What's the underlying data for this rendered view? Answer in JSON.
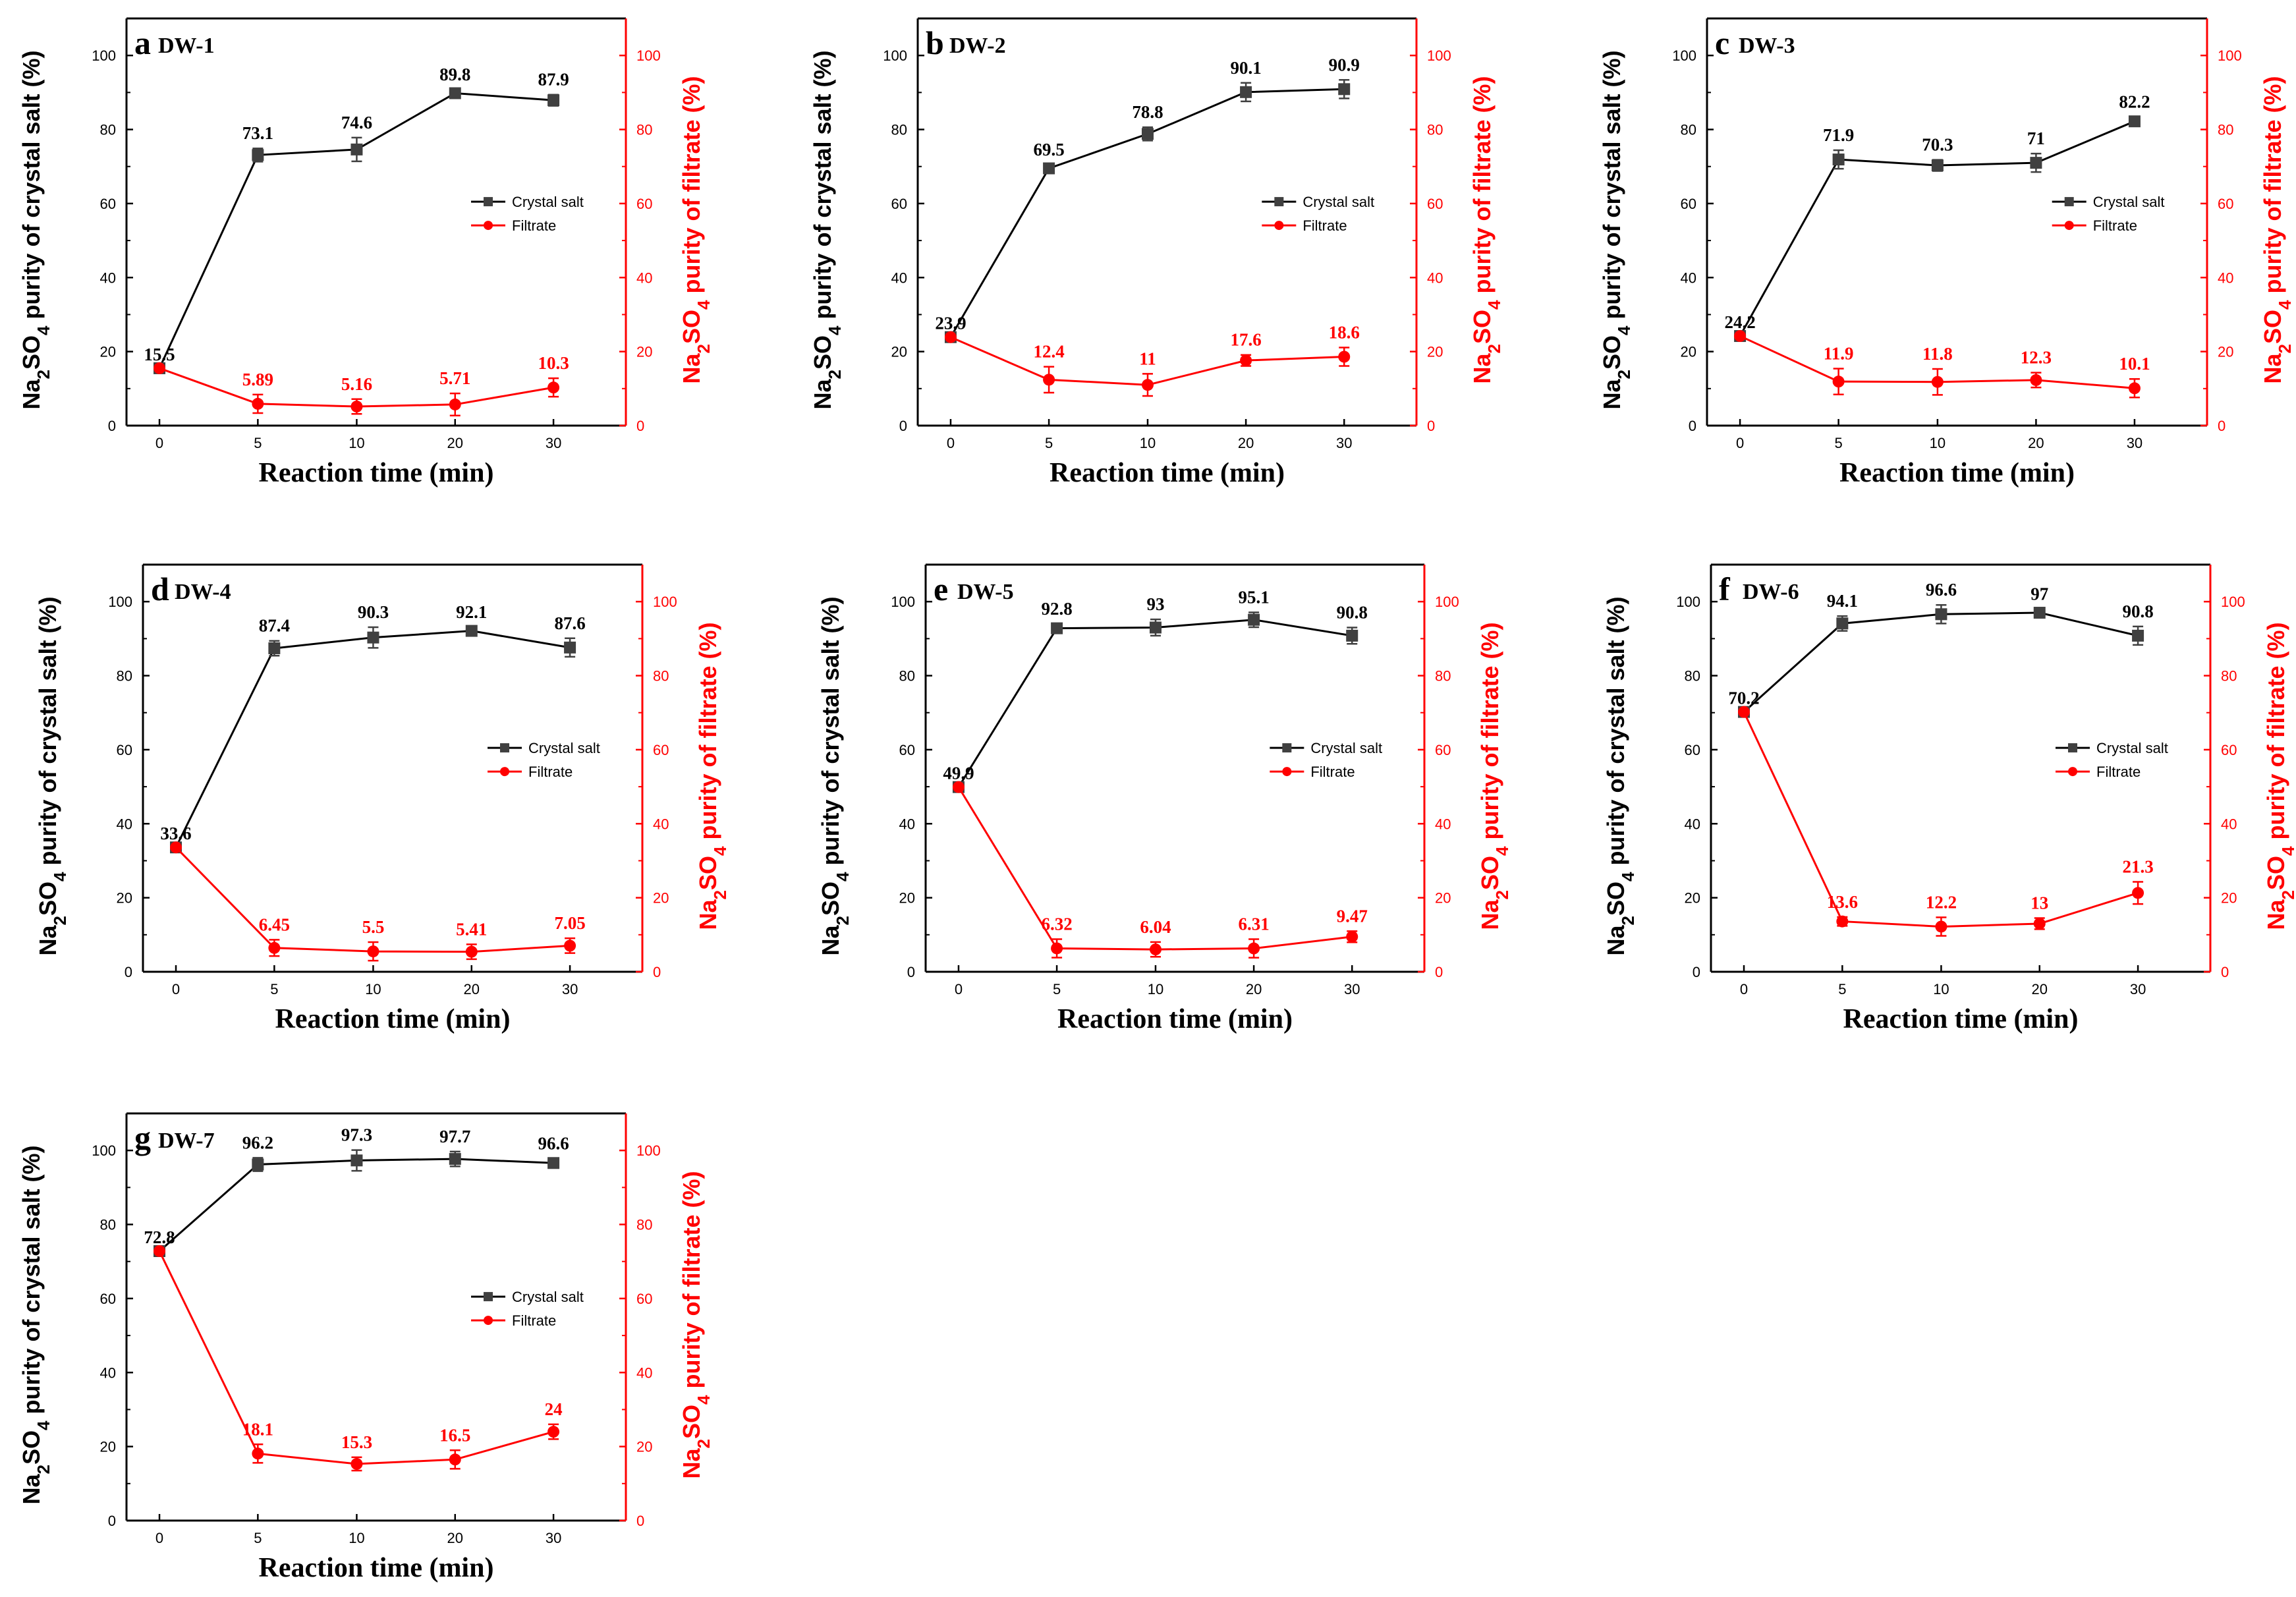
{
  "colors": {
    "crystal": "#000000",
    "crystal_marker": "#404040",
    "filtrate": "#ff0000",
    "axis": "#000000"
  },
  "chart_data": [
    {
      "type": "line",
      "panel": "a",
      "title": "DW-1",
      "x": [
        0,
        5,
        10,
        20,
        30
      ],
      "x_tick_labels": [
        "0",
        "5",
        "10",
        "20",
        "30"
      ],
      "xlabel": "Reaction time (min)",
      "ylabel_left": {
        "prefix": "Na",
        "sub1": "2",
        "mid": "SO",
        "sub2": "4",
        "suffix": " purity of crystal salt (%)"
      },
      "ylabel_right": {
        "prefix": "Na",
        "sub1": "2",
        "mid": "SO",
        "sub2": "4",
        "suffix": " purity of filtrate (%)"
      },
      "ylim": [
        0,
        110
      ],
      "y_ticks": [
        0,
        20,
        40,
        60,
        80,
        100
      ],
      "legend_position": "center-right",
      "series": [
        {
          "name": "Crystal salt",
          "values": [
            15.5,
            73.1,
            74.6,
            89.8,
            87.9
          ],
          "errors": [
            0.8,
            1.8,
            3.2,
            1.0,
            1.5
          ],
          "labels": [
            "15.5",
            "73.1",
            "74.6",
            "89.8",
            "87.9"
          ]
        },
        {
          "name": "Filtrate",
          "values": [
            15.5,
            5.89,
            5.16,
            5.71,
            10.3
          ],
          "errors": [
            0.5,
            2.5,
            2.0,
            3.0,
            2.5
          ],
          "labels": [
            "",
            "5.89",
            "5.16",
            "5.71",
            "10.3"
          ]
        }
      ]
    },
    {
      "type": "line",
      "panel": "b",
      "title": "DW-2",
      "x": [
        0,
        5,
        10,
        20,
        30
      ],
      "x_tick_labels": [
        "0",
        "5",
        "10",
        "20",
        "30"
      ],
      "xlabel": "Reaction time (min)",
      "ylabel_left": {
        "prefix": "Na",
        "sub1": "2",
        "mid": "SO",
        "sub2": "4",
        "suffix": " purity of crystal salt (%)"
      },
      "ylabel_right": {
        "prefix": "Na",
        "sub1": "2",
        "mid": "SO",
        "sub2": "4",
        "suffix": " purity of filtrate (%)"
      },
      "ylim": [
        0,
        110
      ],
      "y_ticks": [
        0,
        20,
        40,
        60,
        80,
        100
      ],
      "legend_position": "center-right",
      "series": [
        {
          "name": "Crystal salt",
          "values": [
            23.9,
            69.5,
            78.8,
            90.1,
            90.9
          ],
          "errors": [
            0.5,
            1.0,
            1.8,
            2.5,
            2.5
          ],
          "labels": [
            "23.9",
            "69.5",
            "78.8",
            "90.1",
            "90.9"
          ]
        },
        {
          "name": "Filtrate",
          "values": [
            23.9,
            12.4,
            11,
            17.6,
            18.6
          ],
          "errors": [
            0.5,
            3.5,
            3.0,
            1.5,
            2.5
          ],
          "labels": [
            "",
            "12.4",
            "11",
            "17.6",
            "18.6"
          ]
        }
      ]
    },
    {
      "type": "line",
      "panel": "c",
      "title": "DW-3",
      "x": [
        0,
        5,
        10,
        20,
        30
      ],
      "x_tick_labels": [
        "0",
        "5",
        "10",
        "20",
        "30"
      ],
      "xlabel": "Reaction time (min)",
      "ylabel_left": {
        "prefix": "Na",
        "sub1": "2",
        "mid": "SO",
        "sub2": "4",
        "suffix": " purity of crystal salt (%)"
      },
      "ylabel_right": {
        "prefix": "Na",
        "sub1": "2",
        "mid": "SO",
        "sub2": "4",
        "suffix": " purity of filtrate (%)"
      },
      "ylim": [
        0,
        110
      ],
      "y_ticks": [
        0,
        20,
        40,
        60,
        80,
        100
      ],
      "legend_position": "center-right",
      "series": [
        {
          "name": "Crystal salt",
          "values": [
            24.2,
            71.9,
            70.3,
            71,
            82.2
          ],
          "errors": [
            0.5,
            2.5,
            1.5,
            2.5,
            1.2
          ],
          "labels": [
            "24.2",
            "71.9",
            "70.3",
            "71",
            "82.2"
          ]
        },
        {
          "name": "Filtrate",
          "values": [
            24.2,
            11.9,
            11.8,
            12.3,
            10.1
          ],
          "errors": [
            0.5,
            3.5,
            3.5,
            2.0,
            2.5
          ],
          "labels": [
            "",
            "11.9",
            "11.8",
            "12.3",
            "10.1"
          ]
        }
      ]
    },
    {
      "type": "line",
      "panel": "d",
      "title": "DW-4",
      "x": [
        0,
        5,
        10,
        20,
        30
      ],
      "x_tick_labels": [
        "0",
        "5",
        "10",
        "20",
        "30"
      ],
      "xlabel": "Reaction time (min)",
      "ylabel_left": {
        "prefix": "Na",
        "sub1": "2",
        "mid": "SO",
        "sub2": "4",
        "suffix": " purity of crystal salt (%)"
      },
      "ylabel_right": {
        "prefix": "Na",
        "sub1": "2",
        "mid": "SO",
        "sub2": "4",
        "suffix": " purity of filtrate (%)"
      },
      "ylim": [
        0,
        110
      ],
      "y_ticks": [
        0,
        20,
        40,
        60,
        80,
        100
      ],
      "legend_position": "center-right",
      "series": [
        {
          "name": "Crystal salt",
          "values": [
            33.6,
            87.4,
            90.3,
            92.1,
            87.6
          ],
          "errors": [
            0.5,
            2.0,
            2.8,
            1.0,
            2.5
          ],
          "labels": [
            "33.6",
            "87.4",
            "90.3",
            "92.1",
            "87.6"
          ]
        },
        {
          "name": "Filtrate",
          "values": [
            33.6,
            6.45,
            5.5,
            5.41,
            7.05
          ],
          "errors": [
            0.5,
            2.2,
            2.5,
            2.0,
            2.0
          ],
          "labels": [
            "",
            "6.45",
            "5.5",
            "5.41",
            "7.05"
          ]
        }
      ]
    },
    {
      "type": "line",
      "panel": "e",
      "title": "DW-5",
      "x": [
        0,
        5,
        10,
        20,
        30
      ],
      "x_tick_labels": [
        "0",
        "5",
        "10",
        "20",
        "30"
      ],
      "xlabel": "Reaction time (min)",
      "ylabel_left": {
        "prefix": "Na",
        "sub1": "2",
        "mid": "SO",
        "sub2": "4",
        "suffix": " purity of crystal salt (%)"
      },
      "ylabel_right": {
        "prefix": "Na",
        "sub1": "2",
        "mid": "SO",
        "sub2": "4",
        "suffix": " purity of filtrate (%)"
      },
      "ylim": [
        0,
        110
      ],
      "y_ticks": [
        0,
        20,
        40,
        60,
        80,
        100
      ],
      "legend_position": "center-right",
      "series": [
        {
          "name": "Crystal salt",
          "values": [
            49.9,
            92.8,
            93,
            95.1,
            90.8
          ],
          "errors": [
            0.5,
            1.2,
            2.2,
            2.0,
            2.2
          ],
          "labels": [
            "49.9",
            "92.8",
            "93",
            "95.1",
            "90.8"
          ]
        },
        {
          "name": "Filtrate",
          "values": [
            49.9,
            6.32,
            6.04,
            6.31,
            9.47
          ],
          "errors": [
            0.5,
            2.5,
            2.0,
            2.5,
            1.5
          ],
          "labels": [
            "",
            "6.32",
            "6.04",
            "6.31",
            "9.47"
          ]
        }
      ]
    },
    {
      "type": "line",
      "panel": "f",
      "title": "DW-6",
      "x": [
        0,
        5,
        10,
        20,
        30
      ],
      "x_tick_labels": [
        "0",
        "5",
        "10",
        "20",
        "30"
      ],
      "xlabel": "Reaction time (min)",
      "ylabel_left": {
        "prefix": "Na",
        "sub1": "2",
        "mid": "SO",
        "sub2": "4",
        "suffix": " purity of crystal salt (%)"
      },
      "ylabel_right": {
        "prefix": "Na",
        "sub1": "2",
        "mid": "SO",
        "sub2": "4",
        "suffix": " purity of filtrate (%)"
      },
      "ylim": [
        0,
        110
      ],
      "y_ticks": [
        0,
        20,
        40,
        60,
        80,
        100
      ],
      "legend_position": "center-right",
      "series": [
        {
          "name": "Crystal salt",
          "values": [
            70.2,
            94.1,
            96.6,
            97,
            90.8
          ],
          "errors": [
            0.5,
            2.0,
            2.5,
            1.0,
            2.5
          ],
          "labels": [
            "70.2",
            "94.1",
            "96.6",
            "97",
            "90.8"
          ]
        },
        {
          "name": "Filtrate",
          "values": [
            70.2,
            13.6,
            12.2,
            13,
            21.3
          ],
          "errors": [
            0.5,
            1.2,
            2.5,
            1.5,
            3.0
          ],
          "labels": [
            "",
            "13.6",
            "12.2",
            "13",
            "21.3"
          ]
        }
      ]
    },
    {
      "type": "line",
      "panel": "g",
      "title": "DW-7",
      "x": [
        0,
        5,
        10,
        20,
        30
      ],
      "x_tick_labels": [
        "0",
        "5",
        "10",
        "20",
        "30"
      ],
      "xlabel": "Reaction time (min)",
      "ylabel_left": {
        "prefix": "Na",
        "sub1": "2",
        "mid": "SO",
        "sub2": "4",
        "suffix": " purity of crystal salt (%)"
      },
      "ylabel_right": {
        "prefix": "Na",
        "sub1": "2",
        "mid": "SO",
        "sub2": "4",
        "suffix": " purity of filtrate (%)"
      },
      "ylim": [
        0,
        110
      ],
      "y_ticks": [
        0,
        20,
        40,
        60,
        80,
        100
      ],
      "legend_position": "center-right",
      "series": [
        {
          "name": "Crystal salt",
          "values": [
            72.8,
            96.2,
            97.3,
            97.7,
            96.6
          ],
          "errors": [
            0.5,
            1.8,
            2.8,
            2.0,
            1.2
          ],
          "labels": [
            "72.8",
            "96.2",
            "97.3",
            "97.7",
            "96.6"
          ]
        },
        {
          "name": "Filtrate",
          "values": [
            72.8,
            18.1,
            15.3,
            16.5,
            24
          ],
          "errors": [
            0.5,
            2.5,
            1.8,
            2.5,
            2.0
          ],
          "labels": [
            "",
            "18.1",
            "15.3",
            "16.5",
            "24"
          ]
        }
      ]
    }
  ]
}
